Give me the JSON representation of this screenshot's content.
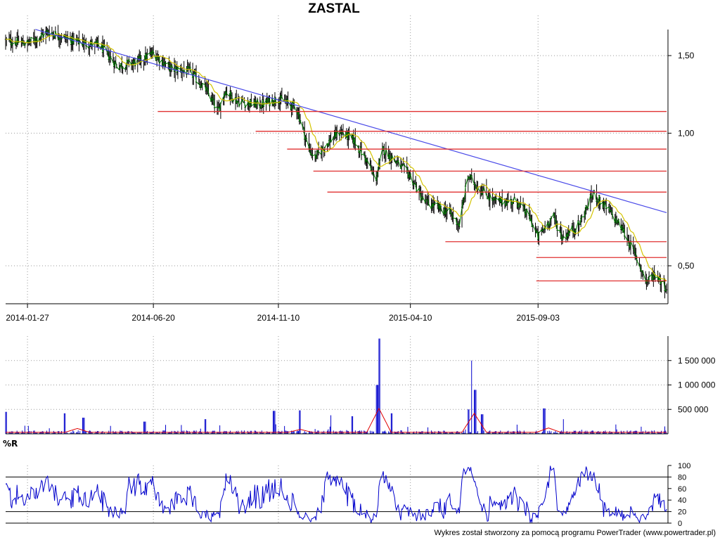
{
  "header": {
    "title": "ZASTAL"
  },
  "footer": {
    "credit": "Wykres został stworzony za pomocą programu PowerTrader (www.powertrader.pl)"
  },
  "chart_data": [
    {
      "id": "price",
      "type": "candlestick",
      "title": "ZASTAL",
      "x_tick_labels": [
        "2014-01-27",
        "2014-06-20",
        "2014-11-10",
        "2015-04-10",
        "2015-09-03"
      ],
      "y_scale": "log",
      "y_tick_labels": [
        "1,50",
        "1,00",
        "0,50"
      ],
      "y_ticks": [
        1.5,
        1.0,
        0.5
      ],
      "ylim": [
        0.41,
        1.85
      ],
      "grid": true,
      "close_keypoints": [
        [
          "2014-01-02",
          1.62
        ],
        [
          "2014-01-27",
          1.6
        ],
        [
          "2014-02-20",
          1.7
        ],
        [
          "2014-03-20",
          1.62
        ],
        [
          "2014-04-20",
          1.58
        ],
        [
          "2014-05-10",
          1.42
        ],
        [
          "2014-06-01",
          1.45
        ],
        [
          "2014-06-20",
          1.52
        ],
        [
          "2014-07-10",
          1.4
        ],
        [
          "2014-08-01",
          1.38
        ],
        [
          "2014-08-20",
          1.25
        ],
        [
          "2014-09-02",
          1.12
        ],
        [
          "2014-09-10",
          1.25
        ],
        [
          "2014-09-25",
          1.18
        ],
        [
          "2014-10-20",
          1.16
        ],
        [
          "2014-11-10",
          1.2
        ],
        [
          "2014-12-01",
          1.14
        ],
        [
          "2014-12-15",
          0.92
        ],
        [
          "2014-12-22",
          0.88
        ],
        [
          "2015-01-05",
          0.95
        ],
        [
          "2015-01-20",
          1.01
        ],
        [
          "2015-02-05",
          0.96
        ],
        [
          "2015-02-20",
          0.86
        ],
        [
          "2015-03-01",
          0.78
        ],
        [
          "2015-03-10",
          0.92
        ],
        [
          "2015-03-25",
          0.86
        ],
        [
          "2015-04-10",
          0.8
        ],
        [
          "2015-04-25",
          0.7
        ],
        [
          "2015-05-10",
          0.68
        ],
        [
          "2015-05-25",
          0.66
        ],
        [
          "2015-06-05",
          0.62
        ],
        [
          "2015-06-15",
          0.8
        ],
        [
          "2015-06-25",
          0.76
        ],
        [
          "2015-07-15",
          0.7
        ],
        [
          "2015-08-10",
          0.7
        ],
        [
          "2015-08-25",
          0.64
        ],
        [
          "2015-09-03",
          0.58
        ],
        [
          "2015-09-20",
          0.65
        ],
        [
          "2015-10-01",
          0.58
        ],
        [
          "2015-10-20",
          0.62
        ],
        [
          "2015-11-05",
          0.73
        ],
        [
          "2015-11-25",
          0.66
        ],
        [
          "2015-12-10",
          0.6
        ],
        [
          "2015-12-25",
          0.52
        ],
        [
          "2016-01-05",
          0.46
        ],
        [
          "2016-01-15",
          0.48
        ],
        [
          "2016-01-28",
          0.445
        ]
      ],
      "moving_average_color": "#d4c400",
      "close_line_color": "#008000",
      "candle_color": "#000000",
      "trend_line": {
        "color": "#4a4ae8",
        "from": [
          "2014-02-05",
          1.72
        ],
        "to": [
          "2016-01-28",
          0.66
        ]
      },
      "support_lines": {
        "color": "#e03030",
        "lines": [
          {
            "price": 1.12,
            "from": "2014-06-25",
            "to": "2016-01-28"
          },
          {
            "price": 1.01,
            "from": "2014-10-15",
            "to": "2016-01-28"
          },
          {
            "price": 0.92,
            "from": "2014-11-20",
            "to": "2016-01-28"
          },
          {
            "price": 0.82,
            "from": "2014-12-20",
            "to": "2016-01-28"
          },
          {
            "price": 0.735,
            "from": "2015-01-05",
            "to": "2016-01-28"
          },
          {
            "price": 0.567,
            "from": "2015-05-20",
            "to": "2016-01-28"
          },
          {
            "price": 0.522,
            "from": "2015-09-01",
            "to": "2016-01-28"
          },
          {
            "price": 0.462,
            "from": "2015-09-01",
            "to": "2016-01-28"
          }
        ]
      }
    },
    {
      "id": "volume",
      "type": "bar",
      "y_tick_labels": [
        "1 500 000",
        "1 000 000",
        "500 000"
      ],
      "y_ticks": [
        1500000,
        1000000,
        500000
      ],
      "ylim": [
        0,
        2000000
      ],
      "bar_color": "#0000cc",
      "average_line_color": "#e00000",
      "spikes": [
        [
          "2014-01-03",
          450000
        ],
        [
          "2014-03-10",
          420000
        ],
        [
          "2014-04-01",
          330000
        ],
        [
          "2014-06-10",
          250000
        ],
        [
          "2014-08-18",
          300000
        ],
        [
          "2014-11-05",
          470000
        ],
        [
          "2014-12-05",
          480000
        ],
        [
          "2015-01-10",
          380000
        ],
        [
          "2015-02-02",
          360000
        ],
        [
          "2015-03-03",
          1000000
        ],
        [
          "2015-03-06",
          1950000
        ],
        [
          "2015-03-20",
          420000
        ],
        [
          "2015-06-20",
          1500000
        ],
        [
          "2015-06-23",
          900000
        ],
        [
          "2015-06-15",
          500000
        ],
        [
          "2015-07-01",
          400000
        ],
        [
          "2015-09-10",
          520000
        ],
        [
          "2015-10-03",
          300000
        ]
      ],
      "average_bumps": [
        [
          "2014-03-25",
          110000
        ],
        [
          "2015-03-05",
          520000
        ],
        [
          "2015-06-22",
          420000
        ],
        [
          "2015-09-15",
          120000
        ],
        [
          "2014-12-05",
          90000
        ]
      ]
    },
    {
      "id": "williams-r",
      "type": "line",
      "label": "%R",
      "y_tick_labels": [
        "100",
        "80",
        "60",
        "40",
        "20",
        "0"
      ],
      "y_ticks": [
        100,
        80,
        60,
        40,
        20,
        0
      ],
      "ylim": [
        0,
        100
      ],
      "reference_lines": [
        80,
        20
      ],
      "line_color": "#0000cc",
      "note": ""
    }
  ]
}
